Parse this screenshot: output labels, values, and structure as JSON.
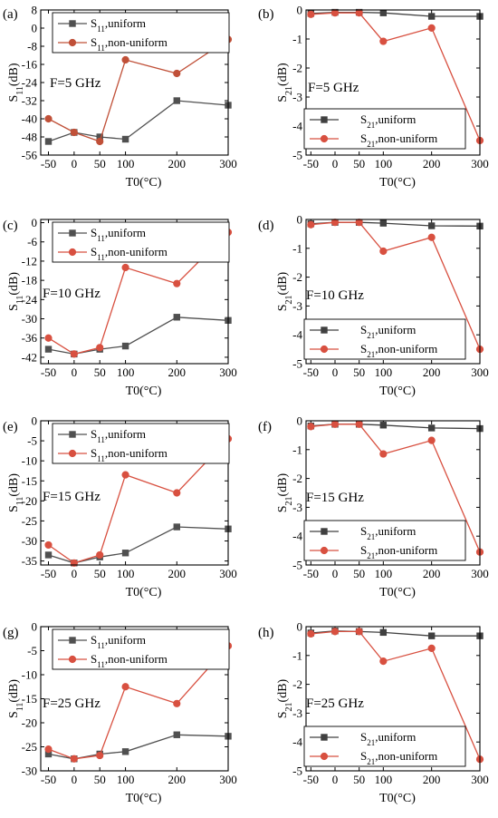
{
  "figure": {
    "background": "#ffffff"
  },
  "legend_labels": {
    "s11_uniform": {
      "base": "S",
      "sub": "11",
      "rest": ",uniform"
    },
    "s11_nonuniform": {
      "base": "S",
      "sub": "11",
      "rest": ",non-uniform"
    },
    "s21_uniform": {
      "base": "S",
      "sub": "21",
      "rest": ",uniform"
    },
    "s21_nonuniform": {
      "base": "S",
      "sub": "21",
      "rest": ",non-uniform"
    }
  },
  "chart_data": [
    {
      "type": "line",
      "panel": "(a)",
      "annotation": "F=5 GHz",
      "xlabel": "T0(°C)",
      "ylabel": {
        "base": "S",
        "sub": "11",
        "rest": "(dB)"
      },
      "x": [
        -50,
        0,
        50,
        100,
        200,
        300
      ],
      "xticks": [
        -50,
        0,
        50,
        100,
        200,
        300
      ],
      "xlim": [
        -65,
        300
      ],
      "ylim": [
        -56,
        8
      ],
      "yticks": [
        8,
        0,
        -8,
        -16,
        -24,
        -32,
        -40,
        -48,
        -56
      ],
      "legend_position": "top-right",
      "series": [
        {
          "name": "S11,uniform",
          "legend": "s11_uniform",
          "color": "#505050",
          "marker": "square",
          "values": [
            -50,
            -46,
            -48,
            -49,
            -32,
            -34
          ]
        },
        {
          "name": "S11,non-uniform",
          "legend": "s11_nonuniform",
          "color": "#c05038",
          "marker": "circle",
          "values": [
            -40,
            -46,
            -50,
            -14,
            -20,
            -5
          ]
        }
      ]
    },
    {
      "type": "line",
      "panel": "(b)",
      "annotation": "F=5 GHz",
      "xlabel": "T0(°C)",
      "ylabel": {
        "base": "S",
        "sub": "21",
        "rest": "(dB)"
      },
      "x": [
        -50,
        0,
        50,
        100,
        200,
        300
      ],
      "xticks": [
        -50,
        0,
        50,
        100,
        200,
        300
      ],
      "xlim": [
        -60,
        300
      ],
      "ylim": [
        -5,
        0
      ],
      "yticks": [
        0,
        -1,
        -2,
        -3,
        -4,
        -5
      ],
      "legend_position": "lower-right",
      "series": [
        {
          "name": "S21,uniform",
          "legend": "s21_uniform",
          "color": "#404040",
          "marker": "square",
          "values": [
            -0.12,
            -0.08,
            -0.08,
            -0.1,
            -0.22,
            -0.22
          ]
        },
        {
          "name": "S21,non-uniform",
          "legend": "s21_nonuniform",
          "color": "#d85040",
          "marker": "circle",
          "values": [
            -0.15,
            -0.1,
            -0.1,
            -1.08,
            -0.62,
            -4.5
          ]
        }
      ]
    },
    {
      "type": "line",
      "panel": "(c)",
      "annotation": "F=10 GHz",
      "xlabel": "T0(°C)",
      "ylabel": {
        "base": "S",
        "sub": "11",
        "rest": "(dB)"
      },
      "x": [
        -50,
        0,
        50,
        100,
        200,
        300
      ],
      "xticks": [
        -50,
        0,
        50,
        100,
        200,
        300
      ],
      "xlim": [
        -65,
        300
      ],
      "ylim": [
        -44,
        1
      ],
      "yticks": [
        0,
        -6,
        -12,
        -18,
        -24,
        -30,
        -36,
        -42
      ],
      "legend_position": "top-right",
      "series": [
        {
          "name": "S11,uniform",
          "legend": "s11_uniform",
          "color": "#505050",
          "marker": "square",
          "values": [
            -39.5,
            -41,
            -39.5,
            -38.5,
            -29.5,
            -30.5
          ]
        },
        {
          "name": "S11,non-uniform",
          "legend": "s11_nonuniform",
          "color": "#d85040",
          "marker": "circle",
          "values": [
            -36,
            -41,
            -39,
            -14,
            -19,
            -3
          ]
        }
      ]
    },
    {
      "type": "line",
      "panel": "(d)",
      "annotation": "F=10 GHz",
      "xlabel": "T0(°C)",
      "ylabel": {
        "base": "S",
        "sub": "21",
        "rest": "(dB)"
      },
      "x": [
        -50,
        0,
        50,
        100,
        200,
        300
      ],
      "xticks": [
        -50,
        0,
        50,
        100,
        200,
        300
      ],
      "xlim": [
        -60,
        300
      ],
      "ylim": [
        -5,
        0
      ],
      "yticks": [
        0,
        -1,
        -2,
        -3,
        -4,
        -5
      ],
      "legend_position": "lower-right",
      "series": [
        {
          "name": "S21,uniform",
          "legend": "s21_uniform",
          "color": "#404040",
          "marker": "square",
          "values": [
            -0.15,
            -0.1,
            -0.1,
            -0.13,
            -0.22,
            -0.23
          ]
        },
        {
          "name": "S21,non-uniform",
          "legend": "s21_nonuniform",
          "color": "#d85040",
          "marker": "circle",
          "values": [
            -0.18,
            -0.1,
            -0.1,
            -1.1,
            -0.62,
            -4.5
          ]
        }
      ]
    },
    {
      "type": "line",
      "panel": "(e)",
      "annotation": "F=15 GHz",
      "xlabel": "T0(°C)",
      "ylabel": {
        "base": "S",
        "sub": "11",
        "rest": "(dB)"
      },
      "x": [
        -50,
        0,
        50,
        100,
        200,
        300
      ],
      "xticks": [
        -50,
        0,
        50,
        100,
        200,
        300
      ],
      "xlim": [
        -65,
        300
      ],
      "ylim": [
        -36,
        0
      ],
      "yticks": [
        0,
        -5,
        -10,
        -15,
        -20,
        -25,
        -30,
        -35
      ],
      "legend_position": "top-right",
      "series": [
        {
          "name": "S11,uniform",
          "legend": "s11_uniform",
          "color": "#505050",
          "marker": "square",
          "values": [
            -33.5,
            -35.5,
            -34,
            -33,
            -26.5,
            -27
          ]
        },
        {
          "name": "S11,non-uniform",
          "legend": "s11_nonuniform",
          "color": "#d85040",
          "marker": "circle",
          "values": [
            -31,
            -35.5,
            -33.5,
            -13.5,
            -18,
            -4.5
          ]
        }
      ]
    },
    {
      "type": "line",
      "panel": "(f)",
      "annotation": "F=15 GHz",
      "xlabel": "T0(°C)",
      "ylabel": {
        "base": "S",
        "sub": "21",
        "rest": "(dB)"
      },
      "x": [
        -50,
        0,
        50,
        100,
        200,
        300
      ],
      "xticks": [
        -50,
        0,
        50,
        100,
        200,
        300
      ],
      "xlim": [
        -60,
        300
      ],
      "ylim": [
        -5,
        0
      ],
      "yticks": [
        0,
        -1,
        -2,
        -3,
        -4,
        -5
      ],
      "legend_position": "lower-right",
      "series": [
        {
          "name": "S21,uniform",
          "legend": "s21_uniform",
          "color": "#404040",
          "marker": "square",
          "values": [
            -0.18,
            -0.12,
            -0.12,
            -0.15,
            -0.25,
            -0.27
          ]
        },
        {
          "name": "S21,non-uniform",
          "legend": "s21_nonuniform",
          "color": "#d85040",
          "marker": "circle",
          "values": [
            -0.2,
            -0.12,
            -0.12,
            -1.15,
            -0.68,
            -4.55
          ]
        }
      ]
    },
    {
      "type": "line",
      "panel": "(g)",
      "annotation": "F=25 GHz",
      "xlabel": "T0(°C)",
      "ylabel": {
        "base": "S",
        "sub": "11",
        "rest": "(dB)"
      },
      "x": [
        -50,
        0,
        50,
        100,
        200,
        300
      ],
      "xticks": [
        -50,
        0,
        50,
        100,
        200,
        300
      ],
      "xlim": [
        -65,
        300
      ],
      "ylim": [
        -30,
        0
      ],
      "yticks": [
        0,
        -5,
        -10,
        -15,
        -20,
        -25,
        -30
      ],
      "legend_position": "top-right",
      "series": [
        {
          "name": "S11,uniform",
          "legend": "s11_uniform",
          "color": "#505050",
          "marker": "square",
          "values": [
            -26.5,
            -27.5,
            -26.5,
            -26,
            -22.5,
            -22.8
          ]
        },
        {
          "name": "S11,non-uniform",
          "legend": "s11_nonuniform",
          "color": "#d85040",
          "marker": "circle",
          "values": [
            -25.5,
            -27.5,
            -26.8,
            -12.5,
            -16,
            -4
          ]
        }
      ]
    },
    {
      "type": "line",
      "panel": "(h)",
      "annotation": "F=25 GHz",
      "xlabel": "T0(°C)",
      "ylabel": {
        "base": "S",
        "sub": "21",
        "rest": "(dB)"
      },
      "x": [
        -50,
        0,
        50,
        100,
        200,
        300
      ],
      "xticks": [
        -50,
        0,
        50,
        100,
        200,
        300
      ],
      "xlim": [
        -60,
        300
      ],
      "ylim": [
        -5,
        0
      ],
      "yticks": [
        0,
        -1,
        -2,
        -3,
        -4,
        -5
      ],
      "legend_position": "lower-right",
      "series": [
        {
          "name": "S21,uniform",
          "legend": "s21_uniform",
          "color": "#404040",
          "marker": "square",
          "values": [
            -0.22,
            -0.15,
            -0.17,
            -0.2,
            -0.32,
            -0.32
          ]
        },
        {
          "name": "S21,non-uniform",
          "legend": "s21_nonuniform",
          "color": "#d85040",
          "marker": "circle",
          "values": [
            -0.25,
            -0.17,
            -0.17,
            -1.2,
            -0.75,
            -4.6
          ]
        }
      ]
    }
  ]
}
